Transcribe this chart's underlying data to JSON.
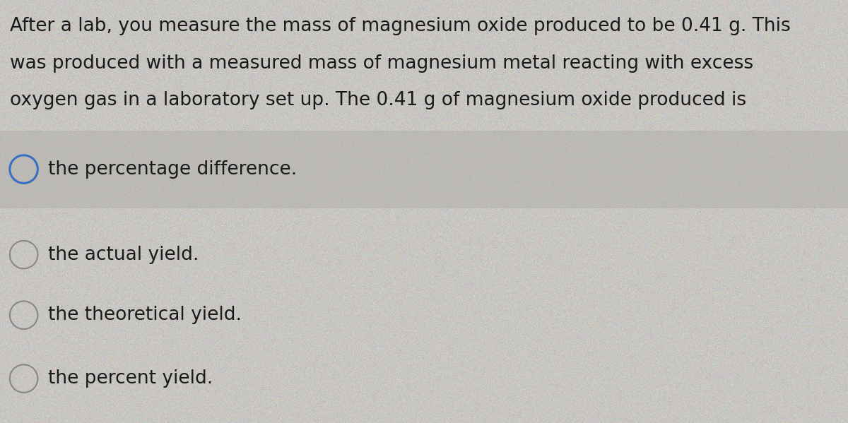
{
  "question_text_lines": [
    "After a lab, you measure the mass of magnesium oxide produced to be 0.41 g. This",
    "was produced with a measured mass of magnesium metal reacting with excess",
    "oxygen gas in a laboratory set up. The 0.41 g of magnesium oxide produced is"
  ],
  "options": [
    "the percentage difference.",
    "the actual yield.",
    "the theoretical yield.",
    "the percent yield."
  ],
  "bg_color": "#c8c6c2",
  "option1_band_color": "#c0bebb",
  "text_color": "#1a1a1a",
  "question_fontsize": 19,
  "option_fontsize": 19,
  "circle_color_opt1": "#3a6fc4",
  "circle_color_rest": "#888888",
  "fig_width": 12.0,
  "fig_height": 5.99
}
